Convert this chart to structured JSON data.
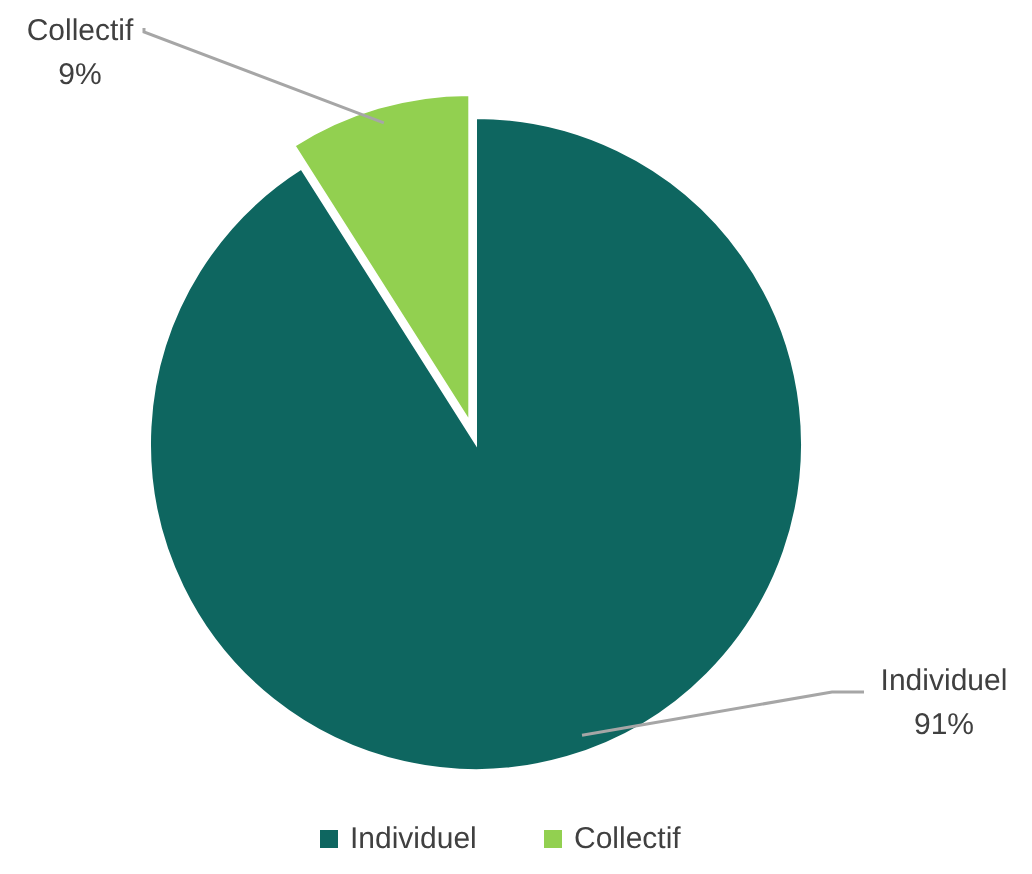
{
  "chart_data": {
    "type": "pie",
    "categories": [
      "Individuel",
      "Collectif"
    ],
    "values": [
      91,
      9
    ],
    "colors": [
      "#0e6660",
      "#92d050"
    ],
    "value_labels": [
      "91%",
      "9%"
    ],
    "legend": "bottom"
  }
}
